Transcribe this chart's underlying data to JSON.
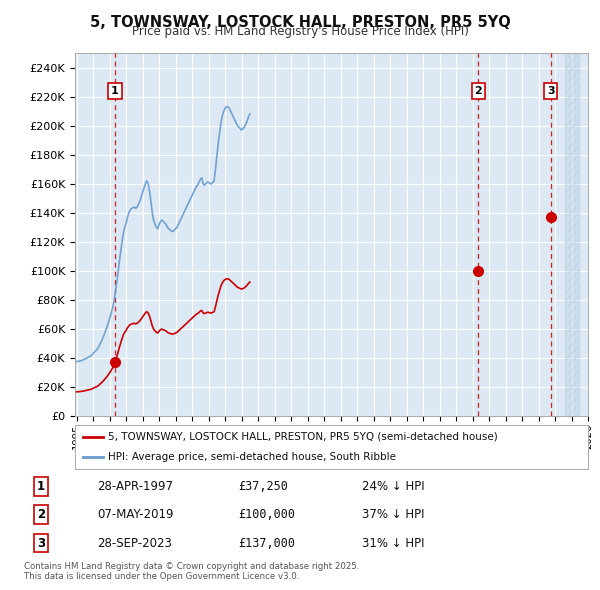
{
  "title": "5, TOWNSWAY, LOSTOCK HALL, PRESTON, PR5 5YQ",
  "subtitle": "Price paid vs. HM Land Registry's House Price Index (HPI)",
  "bg_color": "#dce9f5",
  "grid_color": "#ffffff",
  "hpi_color": "#6699cc",
  "price_color": "#cc0000",
  "vline_color": "#cc0000",
  "ylim": [
    0,
    250000
  ],
  "yticks": [
    0,
    20000,
    40000,
    60000,
    80000,
    100000,
    120000,
    140000,
    160000,
    180000,
    200000,
    220000,
    240000
  ],
  "xmin": 1994.9,
  "xmax": 2025.5,
  "xticks": [
    1995,
    1996,
    1997,
    1998,
    1999,
    2000,
    2001,
    2002,
    2003,
    2004,
    2005,
    2006,
    2007,
    2008,
    2009,
    2010,
    2011,
    2012,
    2013,
    2014,
    2015,
    2016,
    2017,
    2018,
    2019,
    2020,
    2021,
    2022,
    2023,
    2024,
    2025,
    2026
  ],
  "sale_years": [
    1997.32,
    2019.35,
    2023.75
  ],
  "sale_prices": [
    37250,
    100000,
    137000
  ],
  "sale_labels": [
    "1",
    "2",
    "3"
  ],
  "legend_entries": [
    "5, TOWNSWAY, LOSTOCK HALL, PRESTON, PR5 5YQ (semi-detached house)",
    "HPI: Average price, semi-detached house, South Ribble"
  ],
  "table_rows": [
    [
      "1",
      "28-APR-1997",
      "£37,250",
      "24% ↓ HPI"
    ],
    [
      "2",
      "07-MAY-2019",
      "£100,000",
      "37% ↓ HPI"
    ],
    [
      "3",
      "28-SEP-2023",
      "£137,000",
      "31% ↓ HPI"
    ]
  ],
  "footer": "Contains HM Land Registry data © Crown copyright and database right 2025.\nThis data is licensed under the Open Government Licence v3.0.",
  "hpi_raw": [
    37500,
    37600,
    37800,
    38000,
    38400,
    38800,
    39200,
    39700,
    40200,
    40700,
    41200,
    42000,
    43000,
    44000,
    45000,
    46000,
    47500,
    49500,
    51500,
    53500,
    56000,
    58500,
    61000,
    64000,
    67000,
    70500,
    74000,
    78000,
    84000,
    91000,
    98000,
    106000,
    113000,
    120000,
    126000,
    130000,
    133000,
    137000,
    140000,
    142000,
    143000,
    143500,
    144000,
    143000,
    144000,
    146000,
    148000,
    151000,
    154000,
    157000,
    160000,
    162000,
    160000,
    155000,
    148000,
    140000,
    135000,
    132000,
    130000,
    129000,
    132000,
    134000,
    135000,
    134000,
    133000,
    132000,
    130000,
    129000,
    128000,
    127500,
    127000,
    128000,
    129000,
    130000,
    132000,
    134000,
    136000,
    138000,
    140000,
    142000,
    144000,
    146000,
    148000,
    150000,
    152000,
    154000,
    156000,
    158000,
    159000,
    161000,
    163000,
    164000,
    160000,
    159000,
    160000,
    161000,
    161000,
    160000,
    160000,
    161000,
    162000,
    170000,
    179000,
    188000,
    195000,
    202000,
    207000,
    210000,
    212000,
    213000,
    213000,
    212000,
    210000,
    208000,
    206000,
    204000,
    202000,
    200000,
    199000,
    198000,
    197000,
    198000,
    199000,
    201000,
    203000,
    206000,
    208000
  ]
}
